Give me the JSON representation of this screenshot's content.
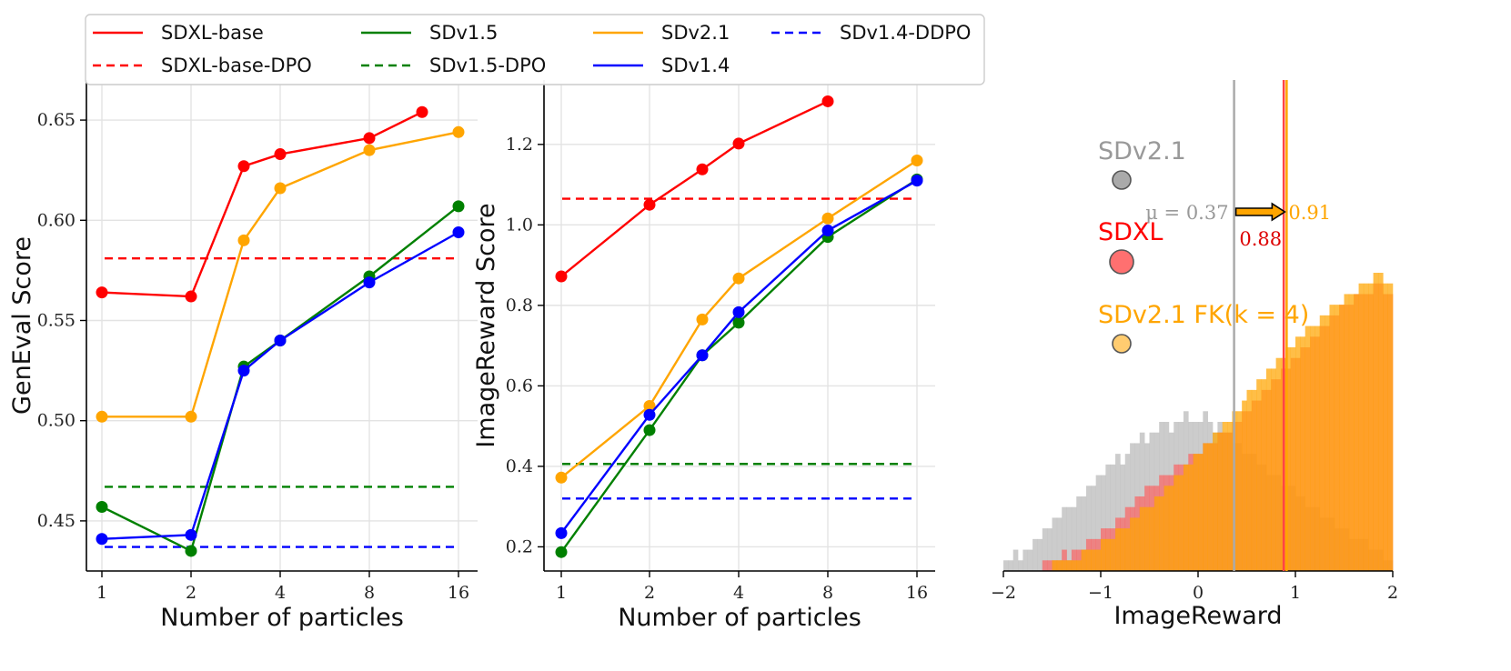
{
  "legend": [
    {
      "label": "SDXL-base",
      "color": "#ff0000",
      "dash": false
    },
    {
      "label": "SDXL-base-DPO",
      "color": "#ff0000",
      "dash": true
    },
    {
      "label": "SDv1.5",
      "color": "#008000",
      "dash": false
    },
    {
      "label": "SDv1.5-DPO",
      "color": "#008000",
      "dash": true
    },
    {
      "label": "SDv2.1",
      "color": "#ffa500",
      "dash": false
    },
    {
      "label": "SDv1.4",
      "color": "#0000ff",
      "dash": false
    },
    {
      "label": "SDv1.4-DDPO",
      "color": "#0000ff",
      "dash": true
    }
  ],
  "chart_data": [
    {
      "type": "line",
      "xlabel": "Number of particles",
      "ylabel": "GenEval Score",
      "categories": [
        "1",
        "2",
        "3",
        "4",
        "8",
        "12",
        "16"
      ],
      "xtick_labels": [
        "1",
        "2",
        "4",
        "8",
        "16"
      ],
      "ylim": [
        0.425,
        0.67
      ],
      "yticks": [
        0.45,
        0.5,
        0.55,
        0.6,
        0.65
      ],
      "ytick_labels": [
        "0.45",
        "0.50",
        "0.55",
        "0.60",
        "0.65"
      ],
      "series": [
        {
          "name": "SDXL-base",
          "color": "#ff0000",
          "values": [
            0.564,
            0.562,
            0.627,
            0.633,
            0.641,
            0.654,
            null
          ]
        },
        {
          "name": "SDv2.1",
          "color": "#ffa500",
          "values": [
            0.502,
            0.502,
            0.59,
            0.616,
            0.635,
            null,
            0.644
          ]
        },
        {
          "name": "SDv1.5",
          "color": "#008000",
          "values": [
            0.457,
            0.435,
            0.527,
            0.54,
            0.572,
            null,
            0.607
          ]
        },
        {
          "name": "SDv1.4",
          "color": "#0000ff",
          "values": [
            0.441,
            0.443,
            0.525,
            0.54,
            0.569,
            null,
            0.594
          ]
        }
      ],
      "baselines": [
        {
          "name": "SDXL-base-DPO",
          "color": "#ff0000",
          "value": 0.581
        },
        {
          "name": "SDv1.5-DPO",
          "color": "#008000",
          "value": 0.467
        },
        {
          "name": "SDv1.4-DDPO",
          "color": "#0000ff",
          "value": 0.437
        }
      ]
    },
    {
      "type": "line",
      "xlabel": "Number of particles",
      "ylabel": "ImageReward Score",
      "categories": [
        "1",
        "2",
        "3",
        "4",
        "8",
        "16"
      ],
      "xtick_labels": [
        "1",
        "2",
        "4",
        "8",
        "16"
      ],
      "ylim": [
        0.14,
        1.36
      ],
      "yticks": [
        0.2,
        0.4,
        0.6,
        0.8,
        1.0,
        1.2
      ],
      "ytick_labels": [
        "0.2",
        "0.4",
        "0.6",
        "0.8",
        "1.0",
        "1.2"
      ],
      "series": [
        {
          "name": "SDXL-base",
          "color": "#ff0000",
          "values": [
            0.872,
            1.05,
            1.138,
            1.202,
            1.307,
            null
          ]
        },
        {
          "name": "SDv2.1",
          "color": "#ffa500",
          "values": [
            0.372,
            0.55,
            0.765,
            0.867,
            1.016,
            1.16
          ]
        },
        {
          "name": "SDv1.5",
          "color": "#008000",
          "values": [
            0.187,
            0.49,
            0.676,
            0.757,
            0.97,
            1.113
          ]
        },
        {
          "name": "SDv1.4",
          "color": "#0000ff",
          "values": [
            0.234,
            0.528,
            0.676,
            0.783,
            0.986,
            1.11
          ]
        }
      ],
      "baselines": [
        {
          "name": "SDXL-base-DPO",
          "color": "#ff0000",
          "value": 1.065
        },
        {
          "name": "SDv1.5-DPO",
          "color": "#008000",
          "value": 0.406
        },
        {
          "name": "SDv1.4-DDPO",
          "color": "#0000ff",
          "value": 0.32
        }
      ]
    },
    {
      "type": "histogram",
      "xlabel": "ImageReward",
      "xlim": [
        -2,
        2
      ],
      "xticks": [
        -2,
        -1,
        0,
        1,
        2
      ],
      "xtick_labels": [
        "−2",
        "−1",
        "0",
        "1",
        "2"
      ],
      "bins": 80,
      "bin_edges_range": [
        -2,
        2
      ],
      "series": [
        {
          "name": "SDv2.1",
          "color": "#bbbbbb",
          "counts": [
            1,
            1,
            2,
            1,
            2,
            2,
            3,
            3,
            4,
            4,
            5,
            5,
            6,
            6,
            6,
            7,
            7,
            8,
            8,
            9,
            9,
            10,
            10,
            11,
            10,
            11,
            12,
            12,
            13,
            12,
            13,
            13,
            14,
            14,
            13,
            14,
            14,
            15,
            14,
            14,
            14,
            15,
            14,
            13,
            14,
            13,
            13,
            12,
            12,
            11,
            11,
            11,
            10,
            10,
            9,
            9,
            9,
            8,
            8,
            8,
            7,
            7,
            6,
            6,
            6,
            5,
            5,
            5,
            4,
            4,
            4,
            3,
            3,
            3,
            3,
            2,
            2,
            2,
            1,
            1
          ]
        },
        {
          "name": "SDXL",
          "color": "#ff5a5a",
          "counts": [
            0,
            0,
            0,
            0,
            0,
            0,
            0,
            0,
            1,
            1,
            1,
            1,
            2,
            1,
            2,
            2,
            2,
            3,
            3,
            3,
            4,
            4,
            4,
            5,
            5,
            6,
            6,
            7,
            7,
            8,
            8,
            8,
            9,
            9,
            9,
            10,
            10,
            10,
            11,
            11,
            11,
            12,
            12,
            12,
            13,
            13,
            13,
            14,
            14,
            15,
            15,
            16,
            16,
            17,
            17,
            18,
            18,
            19,
            19,
            20,
            20,
            21,
            21,
            22,
            22,
            23,
            23,
            24,
            24,
            25,
            25,
            25,
            26,
            26,
            26,
            26,
            27,
            27,
            26,
            26
          ]
        },
        {
          "name": "SDv2.1 FK(k = 4)",
          "color": "#ffa500",
          "counts": [
            0,
            0,
            0,
            0,
            0,
            0,
            0,
            0,
            0,
            0,
            1,
            1,
            1,
            1,
            1,
            1,
            2,
            2,
            2,
            2,
            3,
            3,
            3,
            4,
            4,
            4,
            5,
            5,
            6,
            6,
            6,
            7,
            7,
            8,
            8,
            9,
            9,
            10,
            10,
            11,
            11,
            12,
            12,
            13,
            13,
            14,
            14,
            15,
            15,
            16,
            17,
            17,
            18,
            18,
            19,
            19,
            20,
            20,
            21,
            21,
            22,
            22,
            23,
            23,
            23,
            24,
            24,
            25,
            25,
            25,
            26,
            26,
            26,
            27,
            27,
            27,
            28,
            28,
            27,
            27
          ]
        }
      ],
      "annotations": [
        {
          "label": "SDv2.1",
          "color": "#999999"
        },
        {
          "label": "SDXL",
          "color": "#ff0000"
        },
        {
          "label": "SDv2.1 FK(k = 4)",
          "color": "#ffa500"
        },
        {
          "text": "μ = 0.37",
          "color": "#999999",
          "value": 0.37
        },
        {
          "text": "0.88",
          "color": "#dd0000",
          "value": 0.88
        },
        {
          "text": "0.91",
          "color": "#ffa500",
          "value": 0.91
        }
      ]
    }
  ]
}
